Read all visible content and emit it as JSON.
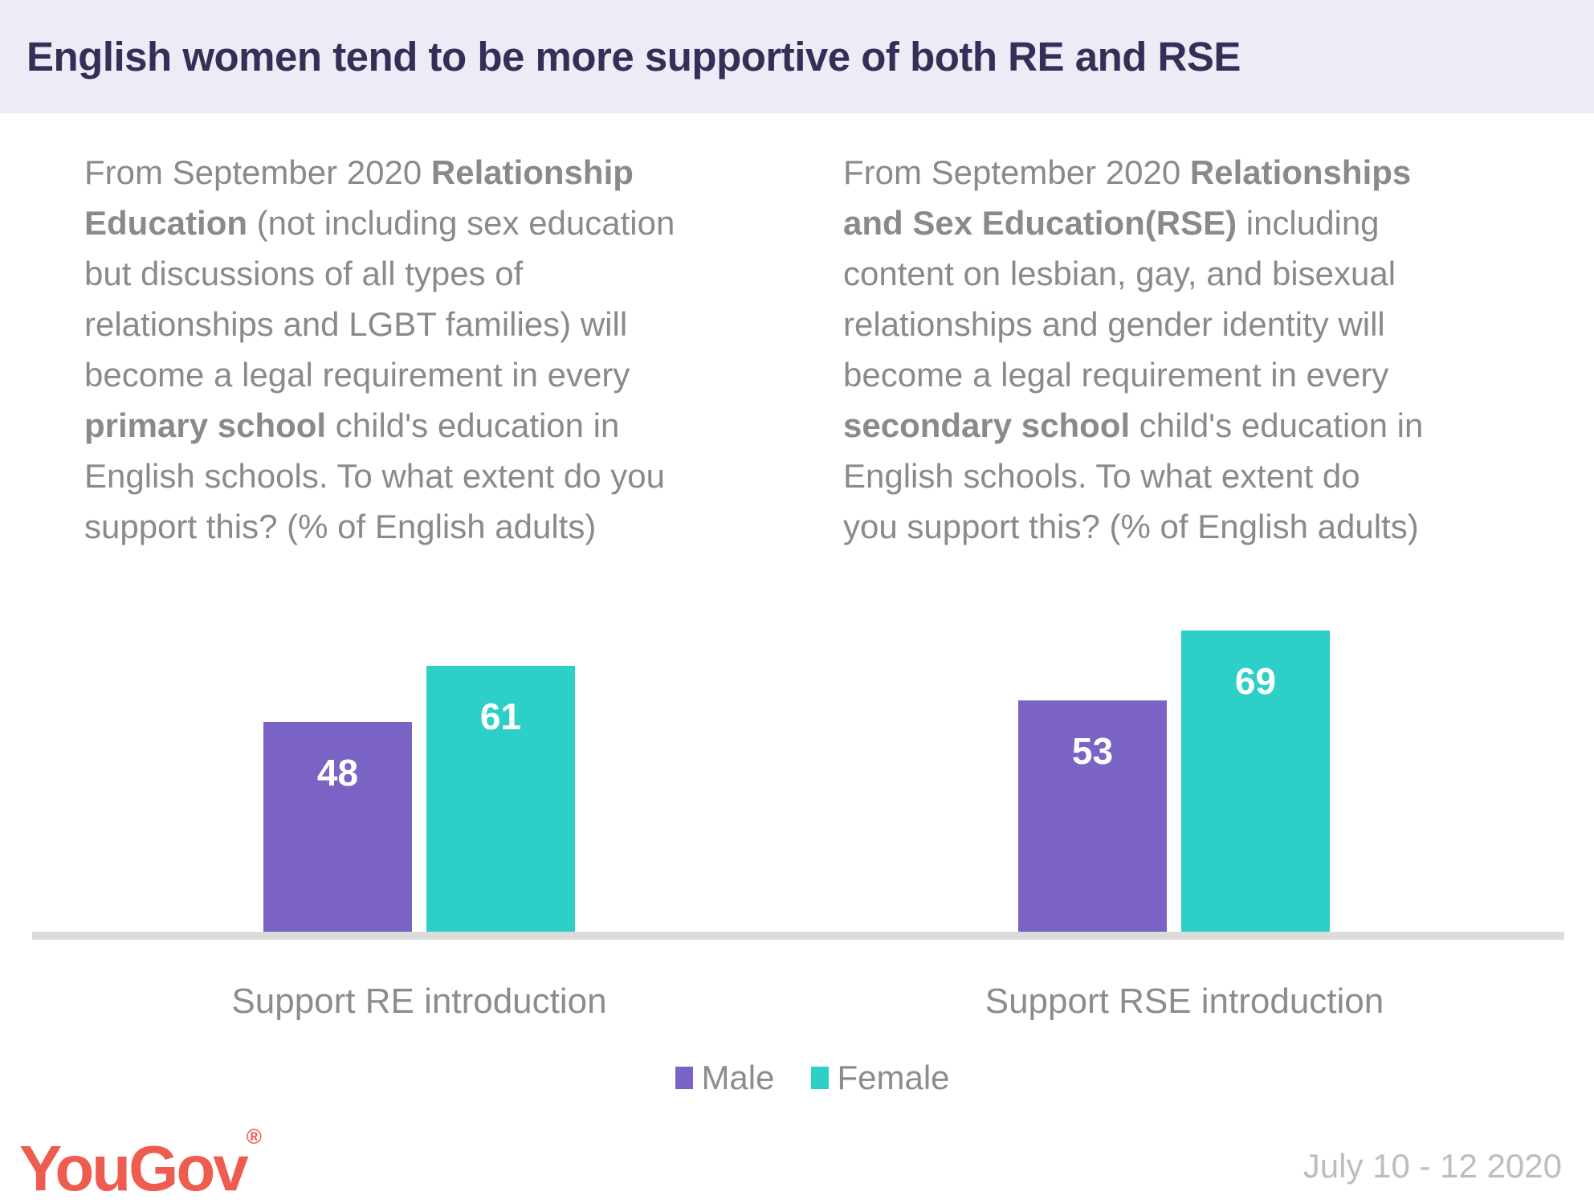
{
  "header": {
    "title": "English women tend to be more supportive of both RE and RSE"
  },
  "questions": {
    "left": {
      "lines": [
        [
          {
            "t": "From September 2020 ",
            "b": false
          },
          {
            "t": "Relationship",
            "b": true
          }
        ],
        [
          {
            "t": "Education",
            "b": true
          },
          {
            "t": " (not including sex education",
            "b": false
          }
        ],
        [
          {
            "t": "but discussions of all types of",
            "b": false
          }
        ],
        [
          {
            "t": "relationships and LGBT families) will",
            "b": false
          }
        ],
        [
          {
            "t": "become a legal requirement in every",
            "b": false
          }
        ],
        [
          {
            "t": "primary school",
            "b": true
          },
          {
            "t": " child's education in",
            "b": false
          }
        ],
        [
          {
            "t": "English schools. To what extent do you",
            "b": false
          }
        ],
        [
          {
            "t": "support this? (% of English adults)",
            "b": false
          }
        ]
      ]
    },
    "right": {
      "lines": [
        [
          {
            "t": "From September 2020 ",
            "b": false
          },
          {
            "t": "Relationships",
            "b": true
          }
        ],
        [
          {
            "t": "and Sex Education(RSE)",
            "b": true
          },
          {
            "t": " including",
            "b": false
          }
        ],
        [
          {
            "t": "content on lesbian, gay, and bisexual",
            "b": false
          }
        ],
        [
          {
            "t": "relationships and gender identity will",
            "b": false
          }
        ],
        [
          {
            "t": "become a legal requirement in every",
            "b": false
          }
        ],
        [
          {
            "t": "secondary school",
            "b": true
          },
          {
            "t": " child's education in",
            "b": false
          }
        ],
        [
          {
            "t": "English schools. To what extent do",
            "b": false
          }
        ],
        [
          {
            "t": "you support this? (% of English adults)",
            "b": false
          }
        ]
      ]
    }
  },
  "chart_data": {
    "type": "bar",
    "title": "English women tend to be more supportive of both RE and RSE",
    "categories": [
      "Support RE introduction",
      "Support RSE introduction"
    ],
    "series": [
      {
        "name": "Male",
        "color": "#7a63c5",
        "values": [
          48,
          53
        ]
      },
      {
        "name": "Female",
        "color": "#2dcfc7",
        "values": [
          61,
          69
        ]
      }
    ],
    "xlabel": "",
    "ylabel": "",
    "ylim": [
      0,
      100
    ],
    "grid": false,
    "value_labels": "inside-top",
    "legend_position": "bottom"
  },
  "colors": {
    "header_bg": "#eeebf6",
    "title": "#352e57",
    "body_text": "#8a8a8a",
    "male": "#7a63c5",
    "female": "#2dcfc7",
    "axis_line": "#dcdcdc",
    "value_label": "#ffffff",
    "date": "#bdbdbd",
    "logo": "#ee5c50"
  },
  "footer": {
    "logo_text": "YouGov",
    "registered_mark": "®",
    "date": "July 10 - 12 2020"
  }
}
